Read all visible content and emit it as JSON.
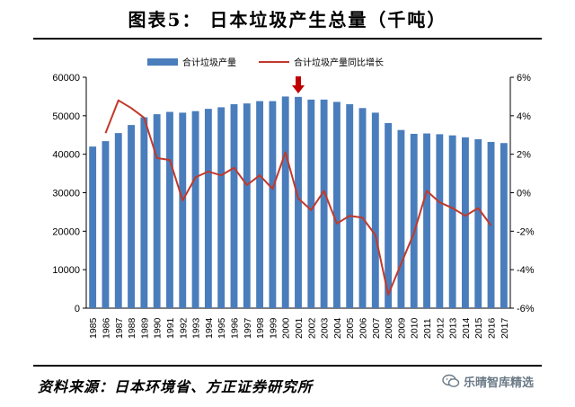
{
  "title": "图表5：  日本垃圾产生总量（千吨）",
  "source_note": "资料来源：日本环境省、方正证券研究所",
  "watermark": "乐晴智库精选",
  "colors": {
    "bar": "#4a7dbc",
    "line": "#c0392b",
    "arrow": "#c00000"
  },
  "chart_data": {
    "type": "bar+line",
    "categories": [
      "1985",
      "1986",
      "1987",
      "1988",
      "1989",
      "1990",
      "1991",
      "1992",
      "1993",
      "1994",
      "1995",
      "1996",
      "1997",
      "1998",
      "1999",
      "2000",
      "2001",
      "2002",
      "2003",
      "2004",
      "2005",
      "2006",
      "2007",
      "2008",
      "2009",
      "2010",
      "2011",
      "2012",
      "2013",
      "2014",
      "2015",
      "2016",
      "2017"
    ],
    "series": [
      {
        "name": "合计垃圾产量",
        "type": "bar",
        "axis": "left",
        "values": [
          42000,
          43400,
          45500,
          47600,
          49600,
          50400,
          51000,
          50800,
          51200,
          51800,
          52200,
          53000,
          53200,
          53800,
          53800,
          55000,
          54900,
          54200,
          54200,
          53600,
          53000,
          52000,
          50800,
          48100,
          46300,
          45300,
          45400,
          45200,
          44900,
          44400,
          43900,
          43200,
          42900
        ]
      },
      {
        "name": "合计垃圾产量同比增长",
        "type": "line",
        "axis": "right",
        "values": [
          null,
          3.1,
          4.8,
          4.4,
          3.9,
          1.8,
          1.7,
          -0.4,
          0.8,
          1.1,
          0.9,
          1.3,
          0.4,
          0.9,
          0.2,
          2.1,
          -0.3,
          -0.9,
          0.1,
          -1.6,
          -1.2,
          -1.3,
          -2.2,
          -5.3,
          -3.7,
          -2.1,
          0.1,
          -0.5,
          -0.8,
          -1.2,
          -0.8,
          -1.7,
          null
        ]
      }
    ],
    "y_left": {
      "min": 0,
      "max": 60000,
      "ticks": [
        0,
        10000,
        20000,
        30000,
        40000,
        50000,
        60000
      ]
    },
    "y_right": {
      "min": -6,
      "max": 6,
      "ticks": [
        -6,
        -4,
        -2,
        0,
        2,
        4,
        6
      ],
      "tick_labels": [
        "-6%",
        "-4%",
        "-2%",
        "0%",
        "2%",
        "4%",
        "6%"
      ]
    },
    "legend_position": "top",
    "annotation": {
      "type": "down-arrow",
      "at_category": "2001"
    }
  }
}
